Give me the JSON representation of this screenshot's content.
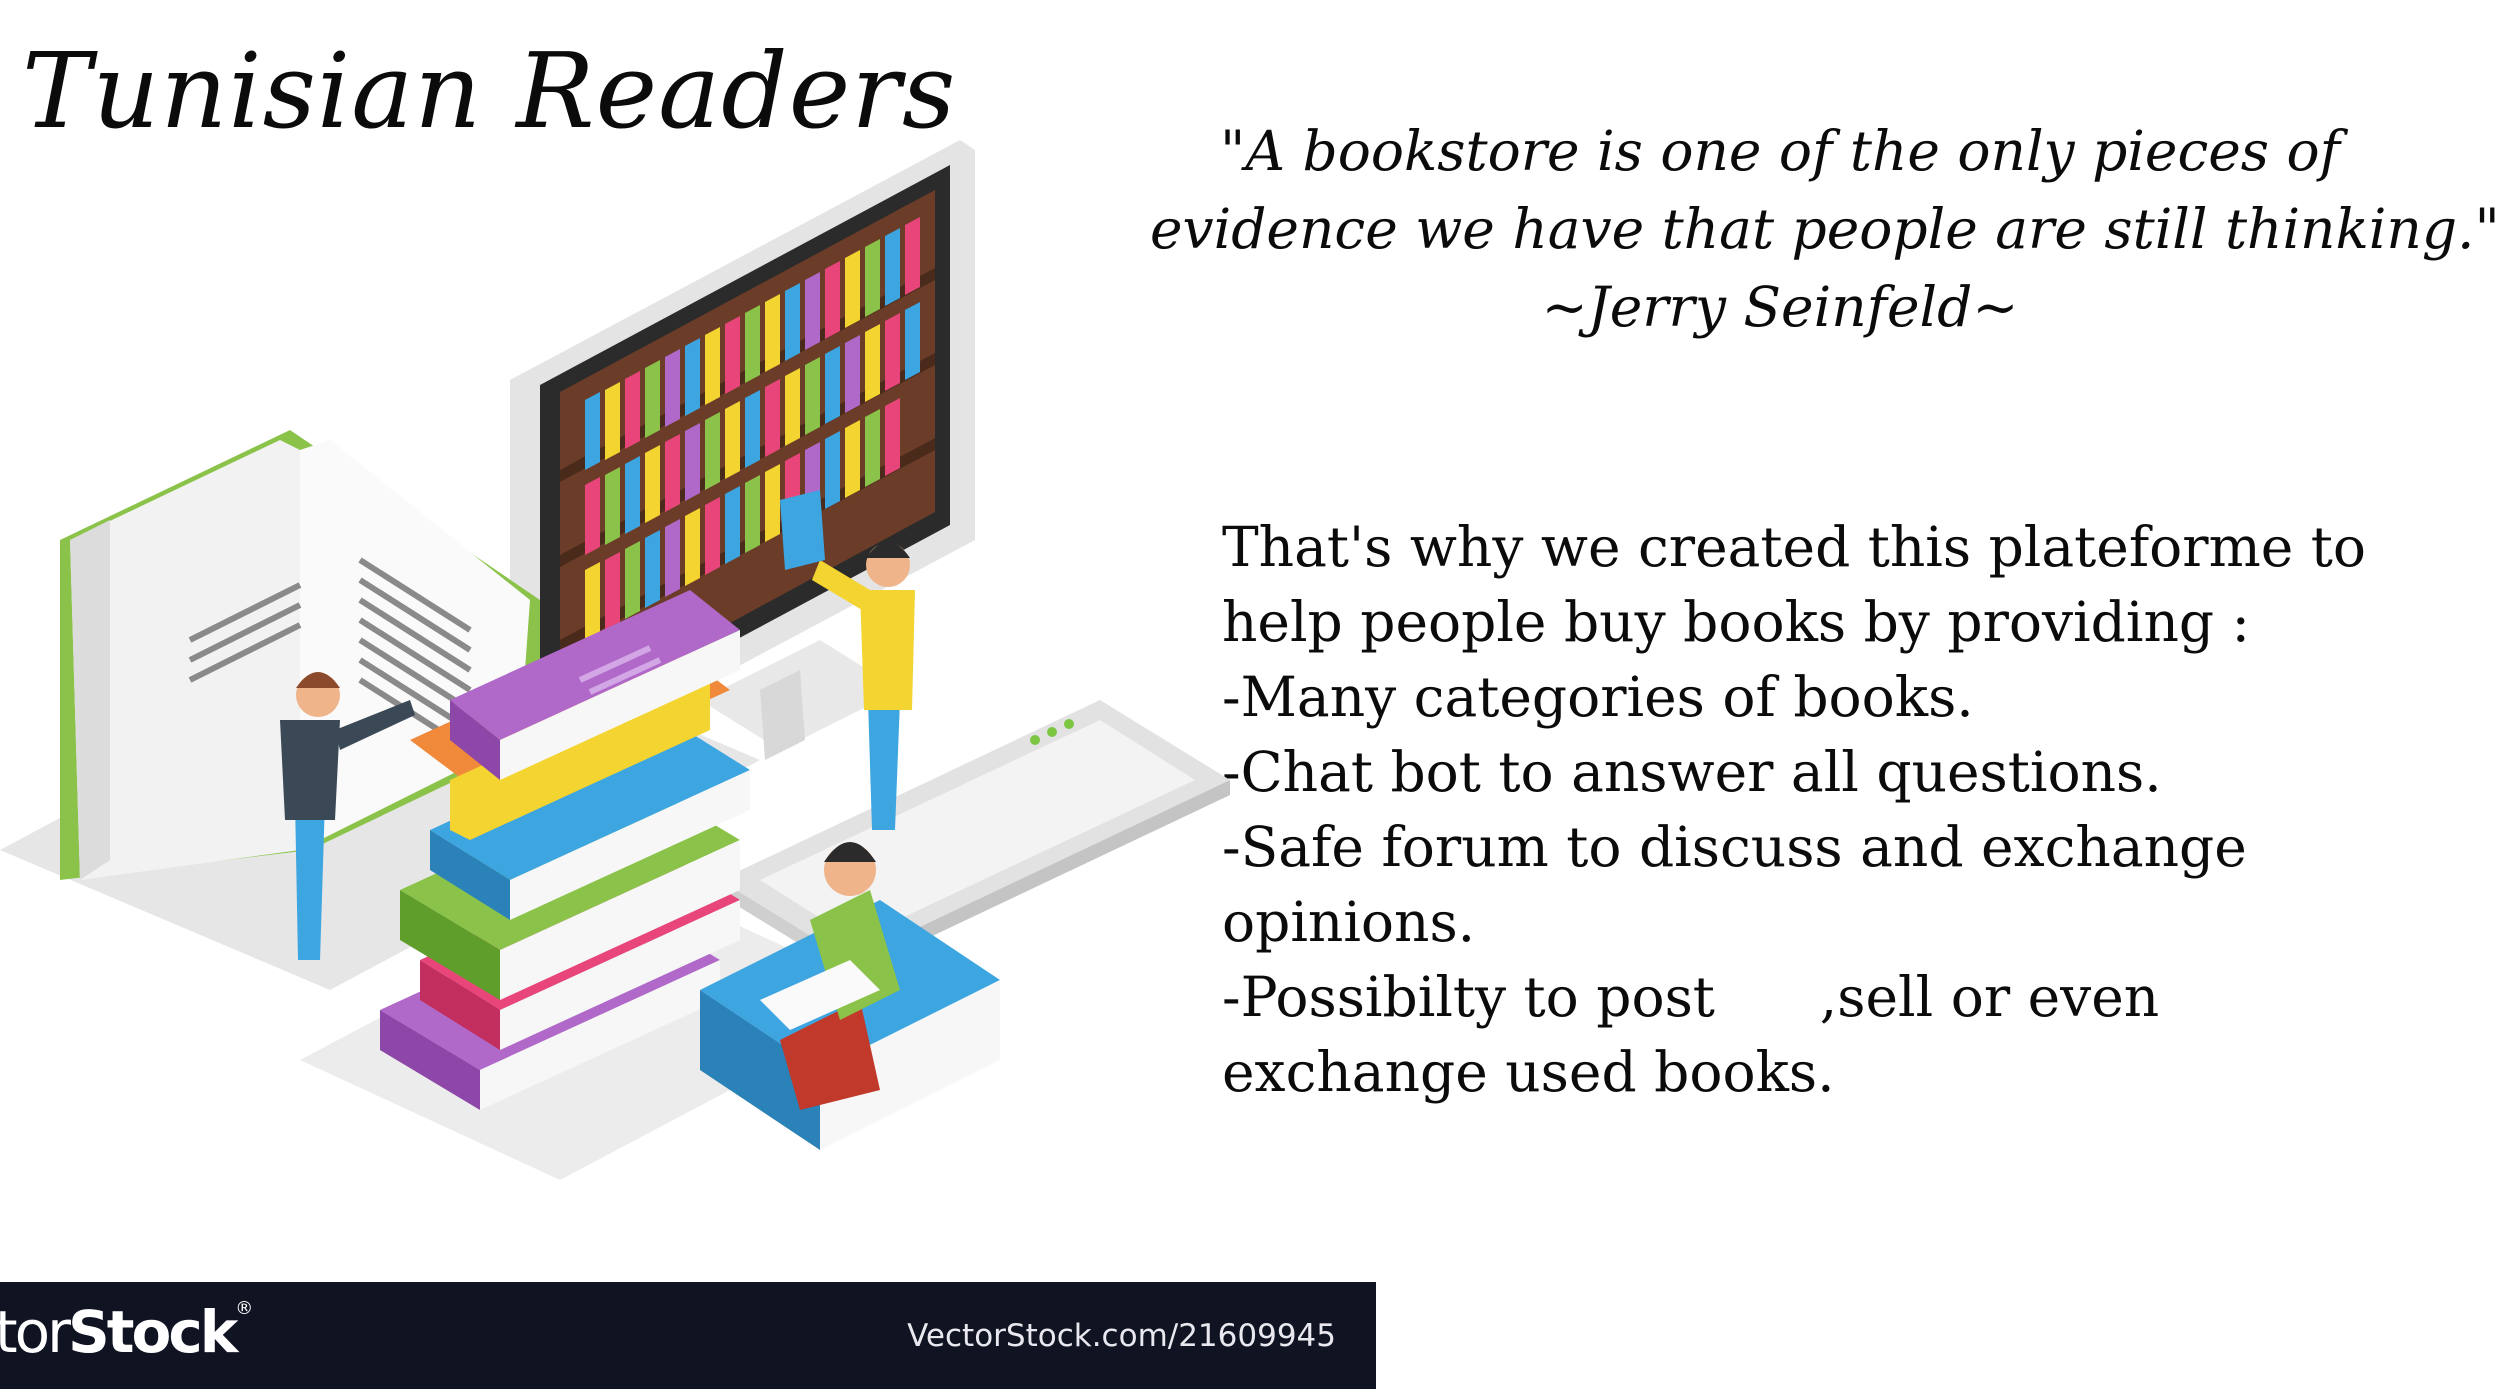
{
  "title": "Tunisian Readers",
  "quote": {
    "lines": [
      "\"A bookstore is one of the only pieces of",
      "evidence we have that people are still thinking.\"",
      "~Jerry Seinfeld~"
    ]
  },
  "description": {
    "lines": [
      "That's why we created this plateforme to",
      "help people buy books by providing :",
      "-Many categories of books.",
      "-Chat bot to answer all questions.",
      "-Safe forum to discuss and exchange",
      "opinions.",
      "-Possibilty to post      ,sell or even",
      "exchange used books."
    ]
  },
  "illustration": {
    "icon": "isometric-library-illustration"
  },
  "watermark": {
    "logo_light": "ctor",
    "logo_bold": "Stock",
    "logo_mark": "®",
    "url": "VectorStock.com/21609945"
  },
  "colors": {
    "text": "#0b0b0b",
    "watermark_bar": "#0f1322",
    "background": "#ffffff"
  }
}
